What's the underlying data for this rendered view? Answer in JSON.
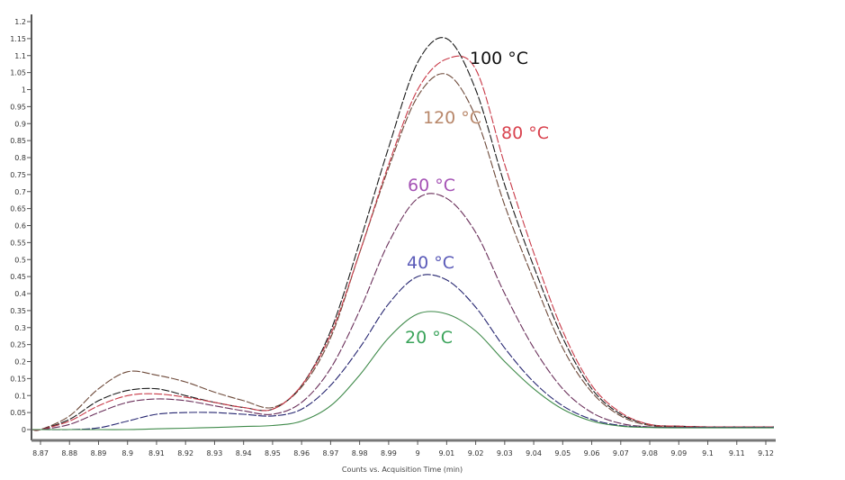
{
  "chart_data": {
    "type": "line",
    "title": "",
    "xlabel": "Counts vs. Acquisition Time (min)",
    "ylabel": "",
    "xlim": [
      8.865,
      9.125
    ],
    "ylim": [
      0,
      1.2
    ],
    "grid": false,
    "legend": "inline labels",
    "x": [
      8.87,
      8.88,
      8.89,
      8.9,
      8.91,
      8.92,
      8.93,
      8.94,
      8.95,
      8.96,
      8.97,
      8.98,
      8.99,
      9.0,
      9.01,
      9.02,
      9.03,
      9.04,
      9.05,
      9.06,
      9.07,
      9.08,
      9.09,
      9.1,
      9.11,
      9.12
    ],
    "x_tick_labels": [
      "8.87",
      "8.88",
      "8.89",
      "8.9",
      "8.91",
      "8.92",
      "8.93",
      "8.94",
      "8.95",
      "8.96",
      "8.97",
      "8.98",
      "8.99",
      "9",
      "9.01",
      "9.02",
      "9.03",
      "9.04",
      "9.05",
      "9.06",
      "9.07",
      "9.08",
      "9.09",
      "9.1",
      "9.11",
      "9.12"
    ],
    "y_tick_labels": [
      "0",
      "0.05",
      "0.1",
      "0.15",
      "0.2",
      "0.25",
      "0.3",
      "0.35",
      "0.4",
      "0.45",
      "0.5",
      "0.55",
      "0.6",
      "0.65",
      "0.7",
      "0.75",
      "0.8",
      "0.85",
      "0.9",
      "0.95",
      "1",
      "1.05",
      "1.1",
      "1.15",
      "1.2"
    ],
    "series": [
      {
        "name": "120 °C",
        "line_color": "#6e4a3a",
        "label_color": "#b8876a",
        "values": [
          0,
          0.04,
          0.12,
          0.17,
          0.16,
          0.14,
          0.11,
          0.085,
          0.065,
          0.125,
          0.27,
          0.52,
          0.77,
          0.98,
          1.045,
          0.92,
          0.66,
          0.44,
          0.24,
          0.11,
          0.04,
          0.012,
          0.008,
          0.007,
          0.007,
          0.007
        ]
      },
      {
        "name": "100 °C",
        "line_color": "#1a1a1a",
        "label_color": "#111111",
        "values": [
          0,
          0.03,
          0.085,
          0.115,
          0.12,
          0.1,
          0.08,
          0.065,
          0.06,
          0.13,
          0.29,
          0.55,
          0.83,
          1.08,
          1.15,
          1.0,
          0.72,
          0.48,
          0.27,
          0.12,
          0.045,
          0.015,
          0.01,
          0.008,
          0.008,
          0.008
        ]
      },
      {
        "name": "80 °C",
        "line_color": "#c83a48",
        "label_color": "#d9434f",
        "values": [
          0,
          0.025,
          0.07,
          0.1,
          0.105,
          0.095,
          0.08,
          0.065,
          0.06,
          0.13,
          0.28,
          0.52,
          0.78,
          1.0,
          1.09,
          1.06,
          0.78,
          0.52,
          0.29,
          0.13,
          0.05,
          0.015,
          0.01,
          0.008,
          0.008,
          0.008
        ]
      },
      {
        "name": "60 °C",
        "line_color": "#6a2f5a",
        "label_color": "#a553b5",
        "values": [
          0,
          0.015,
          0.05,
          0.08,
          0.09,
          0.085,
          0.07,
          0.055,
          0.045,
          0.08,
          0.18,
          0.35,
          0.55,
          0.68,
          0.68,
          0.58,
          0.4,
          0.24,
          0.12,
          0.05,
          0.018,
          0.008,
          0.007,
          0.007,
          0.007,
          0.007
        ]
      },
      {
        "name": "40 °C",
        "line_color": "#252570",
        "label_color": "#5a5ab8",
        "values": [
          0,
          0,
          0.005,
          0.025,
          0.045,
          0.05,
          0.05,
          0.045,
          0.04,
          0.06,
          0.13,
          0.24,
          0.37,
          0.45,
          0.44,
          0.36,
          0.24,
          0.14,
          0.07,
          0.03,
          0.012,
          0.007,
          0.006,
          0.006,
          0.006,
          0.006
        ]
      },
      {
        "name": "20 °C",
        "line_color": "#3f8a4a",
        "label_color": "#3aa35a",
        "values": [
          0,
          0,
          0,
          0,
          0.002,
          0.004,
          0.006,
          0.009,
          0.012,
          0.025,
          0.07,
          0.16,
          0.27,
          0.34,
          0.34,
          0.29,
          0.2,
          0.12,
          0.06,
          0.025,
          0.01,
          0.006,
          0.005,
          0.005,
          0.005,
          0.005
        ]
      }
    ]
  }
}
